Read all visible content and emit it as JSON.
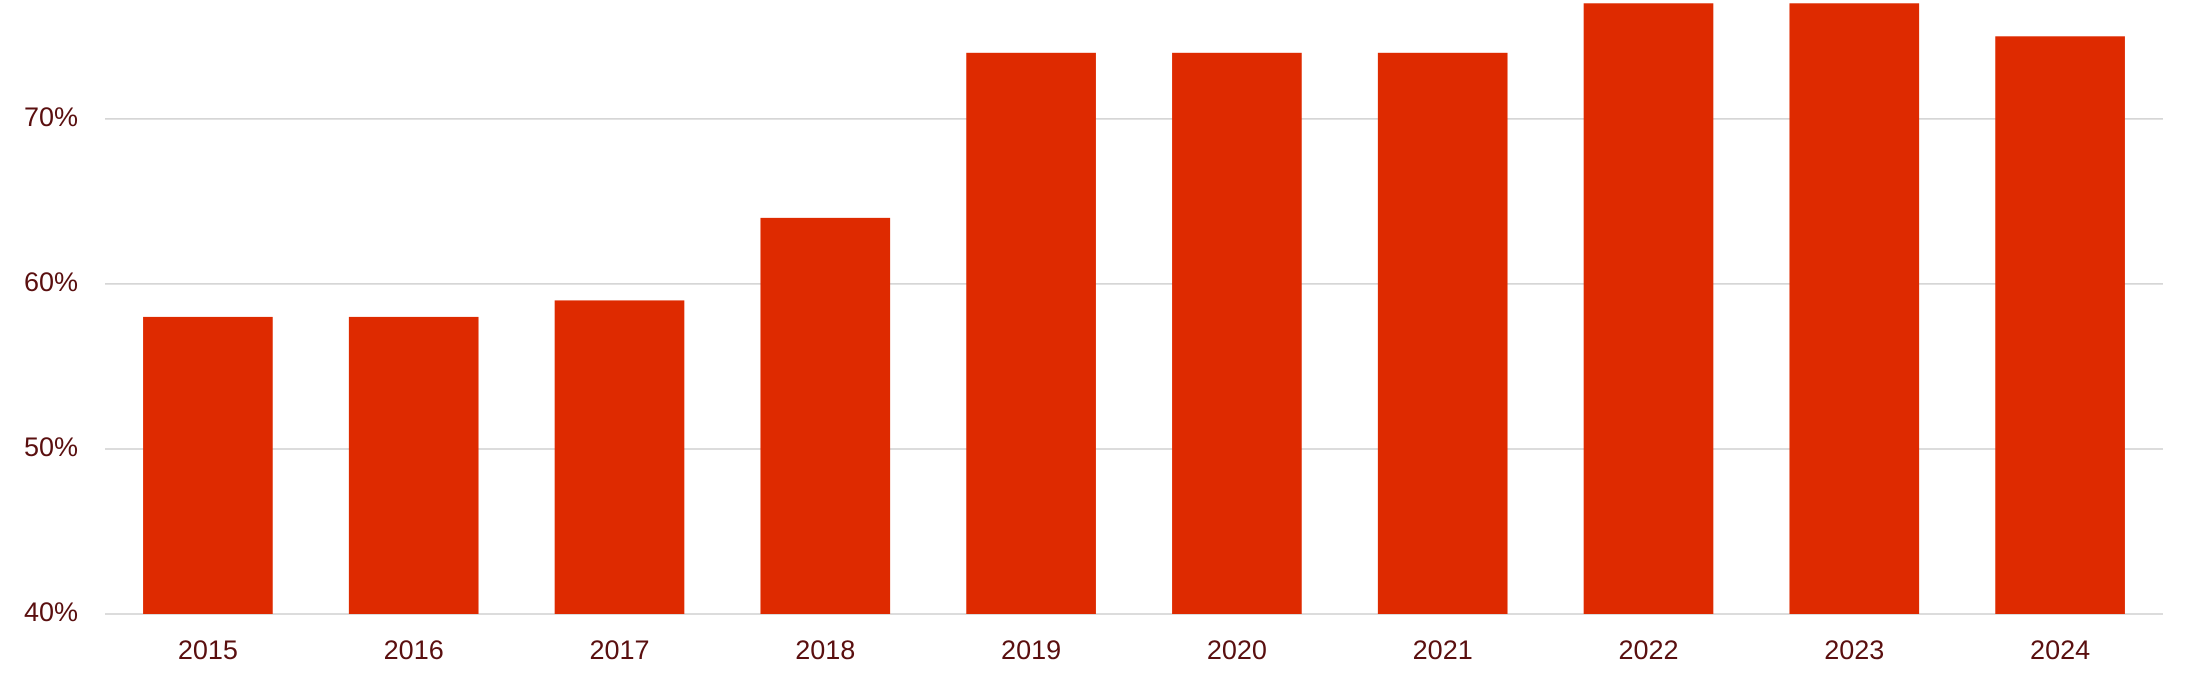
{
  "chart_data": {
    "type": "bar",
    "categories": [
      "2015",
      "2016",
      "2017",
      "2018",
      "2019",
      "2020",
      "2021",
      "2022",
      "2023",
      "2024"
    ],
    "values": [
      58,
      58,
      59,
      64,
      74,
      74,
      74,
      77,
      77,
      75
    ],
    "color": "#de2a00",
    "ylim": [
      40,
      77.2
    ],
    "yticks": [
      {
        "value": 40,
        "label": "40%"
      },
      {
        "value": 50,
        "label": "50%"
      },
      {
        "value": 60,
        "label": "60%"
      },
      {
        "value": 70,
        "label": "70%"
      }
    ],
    "grid": true
  }
}
